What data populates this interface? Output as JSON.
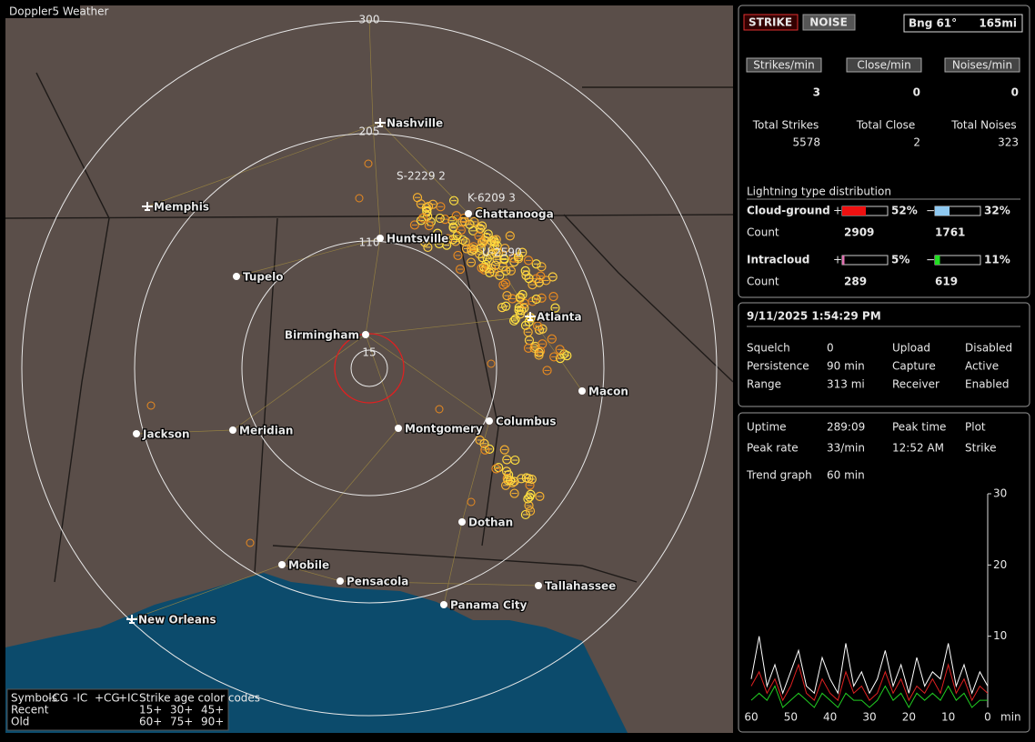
{
  "map": {
    "title": "Doppler5 Weather",
    "ring_labels": [
      "300",
      "205",
      "110",
      "15"
    ],
    "cities": [
      {
        "name": "Nashville",
        "icon": "airport"
      },
      {
        "name": "Memphis",
        "icon": "airport"
      },
      {
        "name": "Chattanooga",
        "icon": "dot"
      },
      {
        "name": "Huntsville",
        "icon": "dot"
      },
      {
        "name": "Tupelo",
        "icon": "dot"
      },
      {
        "name": "Birmingham",
        "icon": "dot"
      },
      {
        "name": "Atlanta",
        "icon": "airport"
      },
      {
        "name": "Macon",
        "icon": "dot"
      },
      {
        "name": "Jackson",
        "icon": "dot"
      },
      {
        "name": "Meridian",
        "icon": "dot"
      },
      {
        "name": "Montgomery",
        "icon": "dot"
      },
      {
        "name": "Columbus",
        "icon": "dot"
      },
      {
        "name": "Dothan",
        "icon": "dot"
      },
      {
        "name": "Mobile",
        "icon": "dot"
      },
      {
        "name": "Pensacola",
        "icon": "dot"
      },
      {
        "name": "Tallahassee",
        "icon": "dot"
      },
      {
        "name": "Panama City",
        "icon": "dot"
      },
      {
        "name": "New Orleans",
        "icon": "airport"
      }
    ],
    "sensors": [
      "S-2229 2",
      "K-6209 3",
      "U-2590"
    ],
    "legend": {
      "header": [
        "Symbols",
        "-CG",
        "-IC",
        "+CG",
        "+IC",
        "Strike age color codes"
      ],
      "rows": [
        {
          "label": "Recent",
          "codes": [
            "15+",
            "30+",
            "45+"
          ]
        },
        {
          "label": "Old",
          "codes": [
            "60+",
            "75+",
            "90+"
          ]
        }
      ]
    }
  },
  "status": {
    "buttons": [
      "STRIKE",
      "NOISE"
    ],
    "bearing": "Bng 61°",
    "distance": "165mi"
  },
  "rates": [
    {
      "label": "Strikes/min",
      "value": 3
    },
    {
      "label": "Close/min",
      "value": 0
    },
    {
      "label": "Noises/min",
      "value": 0
    }
  ],
  "totals": [
    {
      "label": "Total Strikes",
      "value": 5578
    },
    {
      "label": "Total Close",
      "value": 2
    },
    {
      "label": "Total Noises",
      "value": 323
    }
  ],
  "distribution": {
    "title": "Lightning type distribution",
    "rows": [
      {
        "label": "Cloud-ground",
        "parts": [
          {
            "sign": "+",
            "value": 52,
            "label": "52%",
            "color": "#ee1111"
          },
          {
            "sign": "−",
            "value": 32,
            "label": "32%",
            "color": "#8ec8f0"
          }
        ]
      },
      {
        "label": "Count",
        "counts": [
          2909,
          1761
        ]
      },
      {
        "label": "Intracloud",
        "parts": [
          {
            "sign": "+",
            "value": 5,
            "label": "5%",
            "color": "#e070b0"
          },
          {
            "sign": "−",
            "value": 11,
            "label": "11%",
            "color": "#22dd22"
          }
        ]
      },
      {
        "label": "Count",
        "counts": [
          289,
          619
        ]
      }
    ]
  },
  "clock": "9/11/2025 1:54:29 PM",
  "settings": [
    {
      "label": "Squelch",
      "value": "0",
      "label2": "Upload",
      "value2": "Disabled",
      "color2": "#bbbbbb"
    },
    {
      "label": "Persistence",
      "value": "90 min",
      "label2": "Capture",
      "value2": "Active",
      "color2": "#22ee22"
    },
    {
      "label": "Range",
      "value": "313 mi",
      "label2": "Receiver",
      "value2": "Enabled",
      "color2": "#22ee22"
    }
  ],
  "stats": [
    [
      "Uptime",
      "289:09",
      "Peak time",
      "Plot"
    ],
    [
      "Peak rate",
      "33/min",
      "12:52 AM",
      "Strike"
    ],
    [
      "Trend graph",
      "60 min"
    ]
  ],
  "chart_data": {
    "type": "line",
    "x_label": "min",
    "xlim": [
      60,
      0
    ],
    "ylim": [
      0,
      30
    ],
    "yticks": [
      10,
      20,
      30
    ],
    "xticks": [
      60,
      50,
      40,
      30,
      20,
      10,
      0
    ],
    "x": [
      60,
      58,
      56,
      54,
      52,
      50,
      48,
      46,
      44,
      42,
      40,
      38,
      36,
      34,
      32,
      30,
      28,
      26,
      24,
      22,
      20,
      18,
      16,
      14,
      12,
      10,
      8,
      6,
      4,
      2,
      0
    ],
    "series": [
      {
        "color": "#ffffff",
        "values": [
          4,
          10,
          3,
          6,
          2,
          5,
          8,
          3,
          2,
          7,
          4,
          2,
          9,
          3,
          5,
          2,
          4,
          8,
          3,
          6,
          2,
          7,
          3,
          5,
          4,
          9,
          3,
          6,
          2,
          5,
          3
        ]
      },
      {
        "color": "#e02020",
        "values": [
          3,
          5,
          2,
          4,
          1,
          3,
          6,
          2,
          1,
          4,
          2,
          1,
          5,
          2,
          3,
          1,
          2,
          5,
          2,
          4,
          1,
          3,
          2,
          4,
          2,
          6,
          2,
          4,
          1,
          3,
          2
        ]
      },
      {
        "color": "#22cc22",
        "values": [
          1,
          2,
          1,
          3,
          0,
          1,
          2,
          1,
          0,
          2,
          1,
          0,
          2,
          1,
          1,
          0,
          1,
          3,
          1,
          2,
          0,
          2,
          1,
          2,
          1,
          3,
          1,
          2,
          0,
          1,
          1
        ]
      }
    ]
  }
}
